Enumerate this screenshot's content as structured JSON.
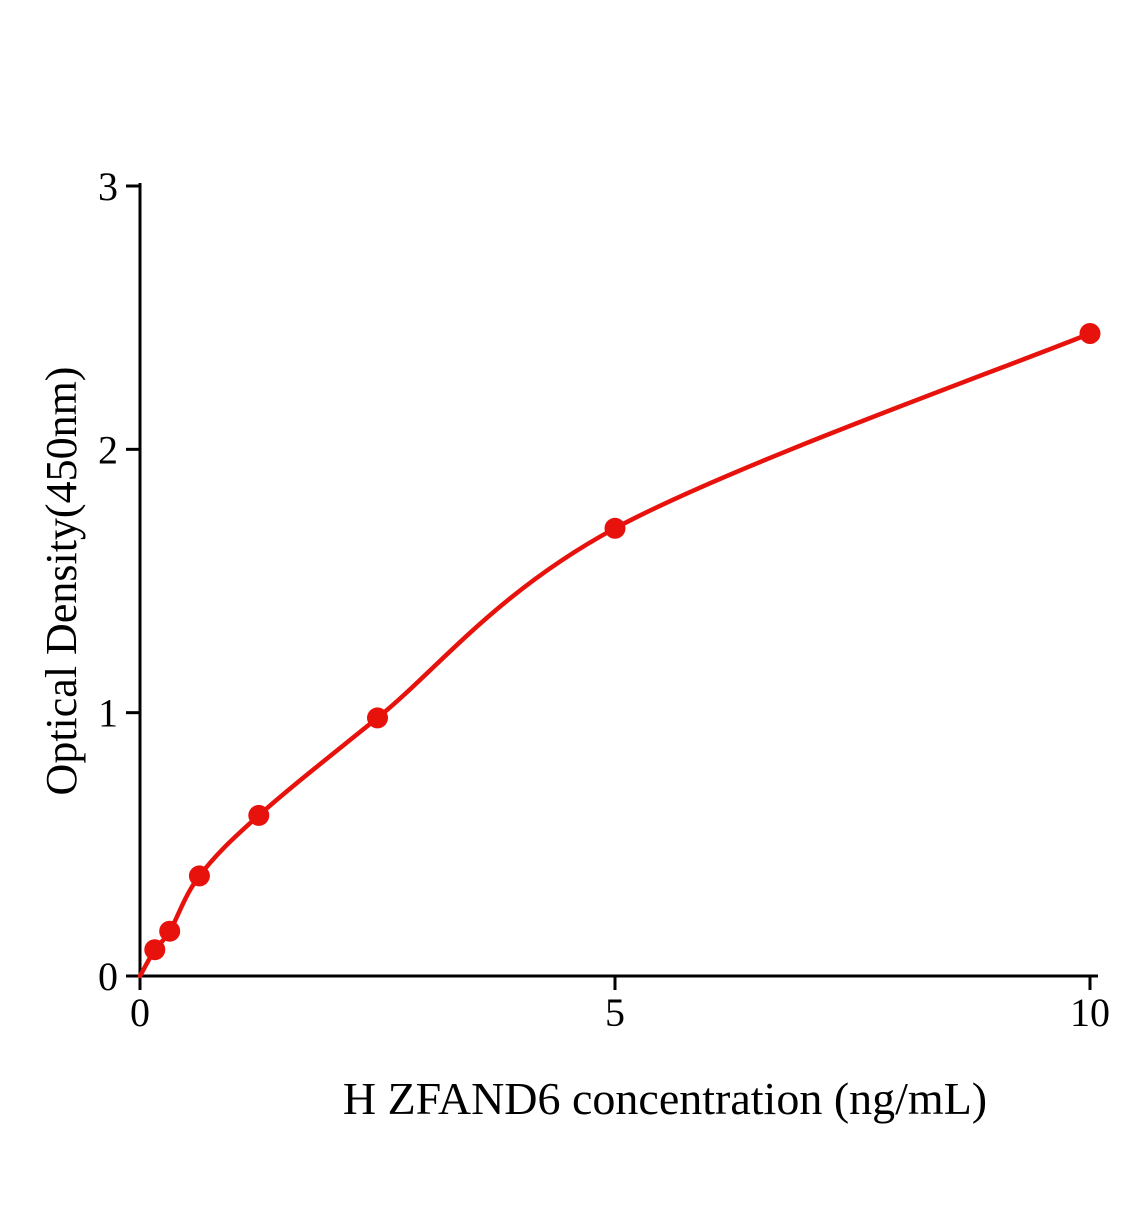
{
  "figure": {
    "background": "#ffffff"
  },
  "chart_data": {
    "type": "scatter",
    "title": "",
    "xlabel": "H ZFAND6 concentration (ng/mL)",
    "ylabel": "Optical Density(450nm)",
    "x": [
      0.156,
      0.313,
      0.625,
      1.25,
      2.5,
      5,
      10
    ],
    "y": [
      0.1,
      0.17,
      0.38,
      0.61,
      0.98,
      1.7,
      2.44
    ],
    "xlim": [
      0,
      10
    ],
    "ylim": [
      0,
      3
    ],
    "xticks": [
      0,
      5,
      10
    ],
    "yticks": [
      0,
      1,
      2,
      3
    ],
    "grid": false,
    "legend": "none",
    "fit_curve": {
      "shown": true,
      "starts_at_origin": true
    },
    "colors": {
      "curve": "#e8120c",
      "marker": "#e8120c",
      "axis": "#000000",
      "text": "#000000"
    }
  }
}
